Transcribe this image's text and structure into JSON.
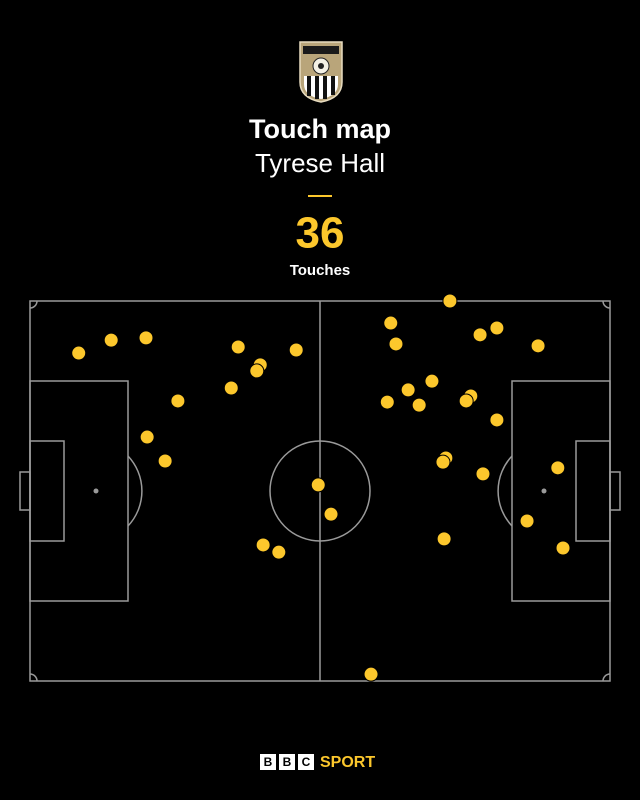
{
  "chart_data": {
    "type": "scatter",
    "title": "Touch map",
    "subtitle": "Tyrese Hall",
    "total": 36,
    "total_label": "Touches",
    "color": "#fcc72c",
    "xlim": [
      0,
      100
    ],
    "ylim": [
      0,
      100
    ],
    "x": [
      72.4,
      62.2,
      80.5,
      77.6,
      63.1,
      87.6,
      8.4,
      14.0,
      20.0,
      35.9,
      45.9,
      39.7,
      39.1,
      34.7,
      25.5,
      69.3,
      65.2,
      61.6,
      67.1,
      76.0,
      75.2,
      80.5,
      20.2,
      23.3,
      71.7,
      71.2,
      78.1,
      91.0,
      49.7,
      51.9,
      85.7,
      71.4,
      91.9,
      40.2,
      42.9,
      58.8
    ],
    "y": [
      100,
      94.2,
      92.9,
      91.1,
      88.7,
      88.2,
      86.3,
      89.7,
      90.3,
      87.9,
      87.1,
      83.2,
      81.6,
      77.1,
      73.7,
      78.9,
      76.6,
      73.4,
      72.6,
      75.0,
      73.7,
      68.7,
      64.2,
      57.9,
      58.7,
      57.6,
      54.5,
      56.1,
      51.6,
      43.9,
      42.1,
      37.4,
      35.0,
      35.8,
      33.9,
      1.8
    ]
  },
  "footer": {
    "brand_letters": [
      "B",
      "B",
      "C"
    ],
    "brand_text": "SPORT"
  }
}
